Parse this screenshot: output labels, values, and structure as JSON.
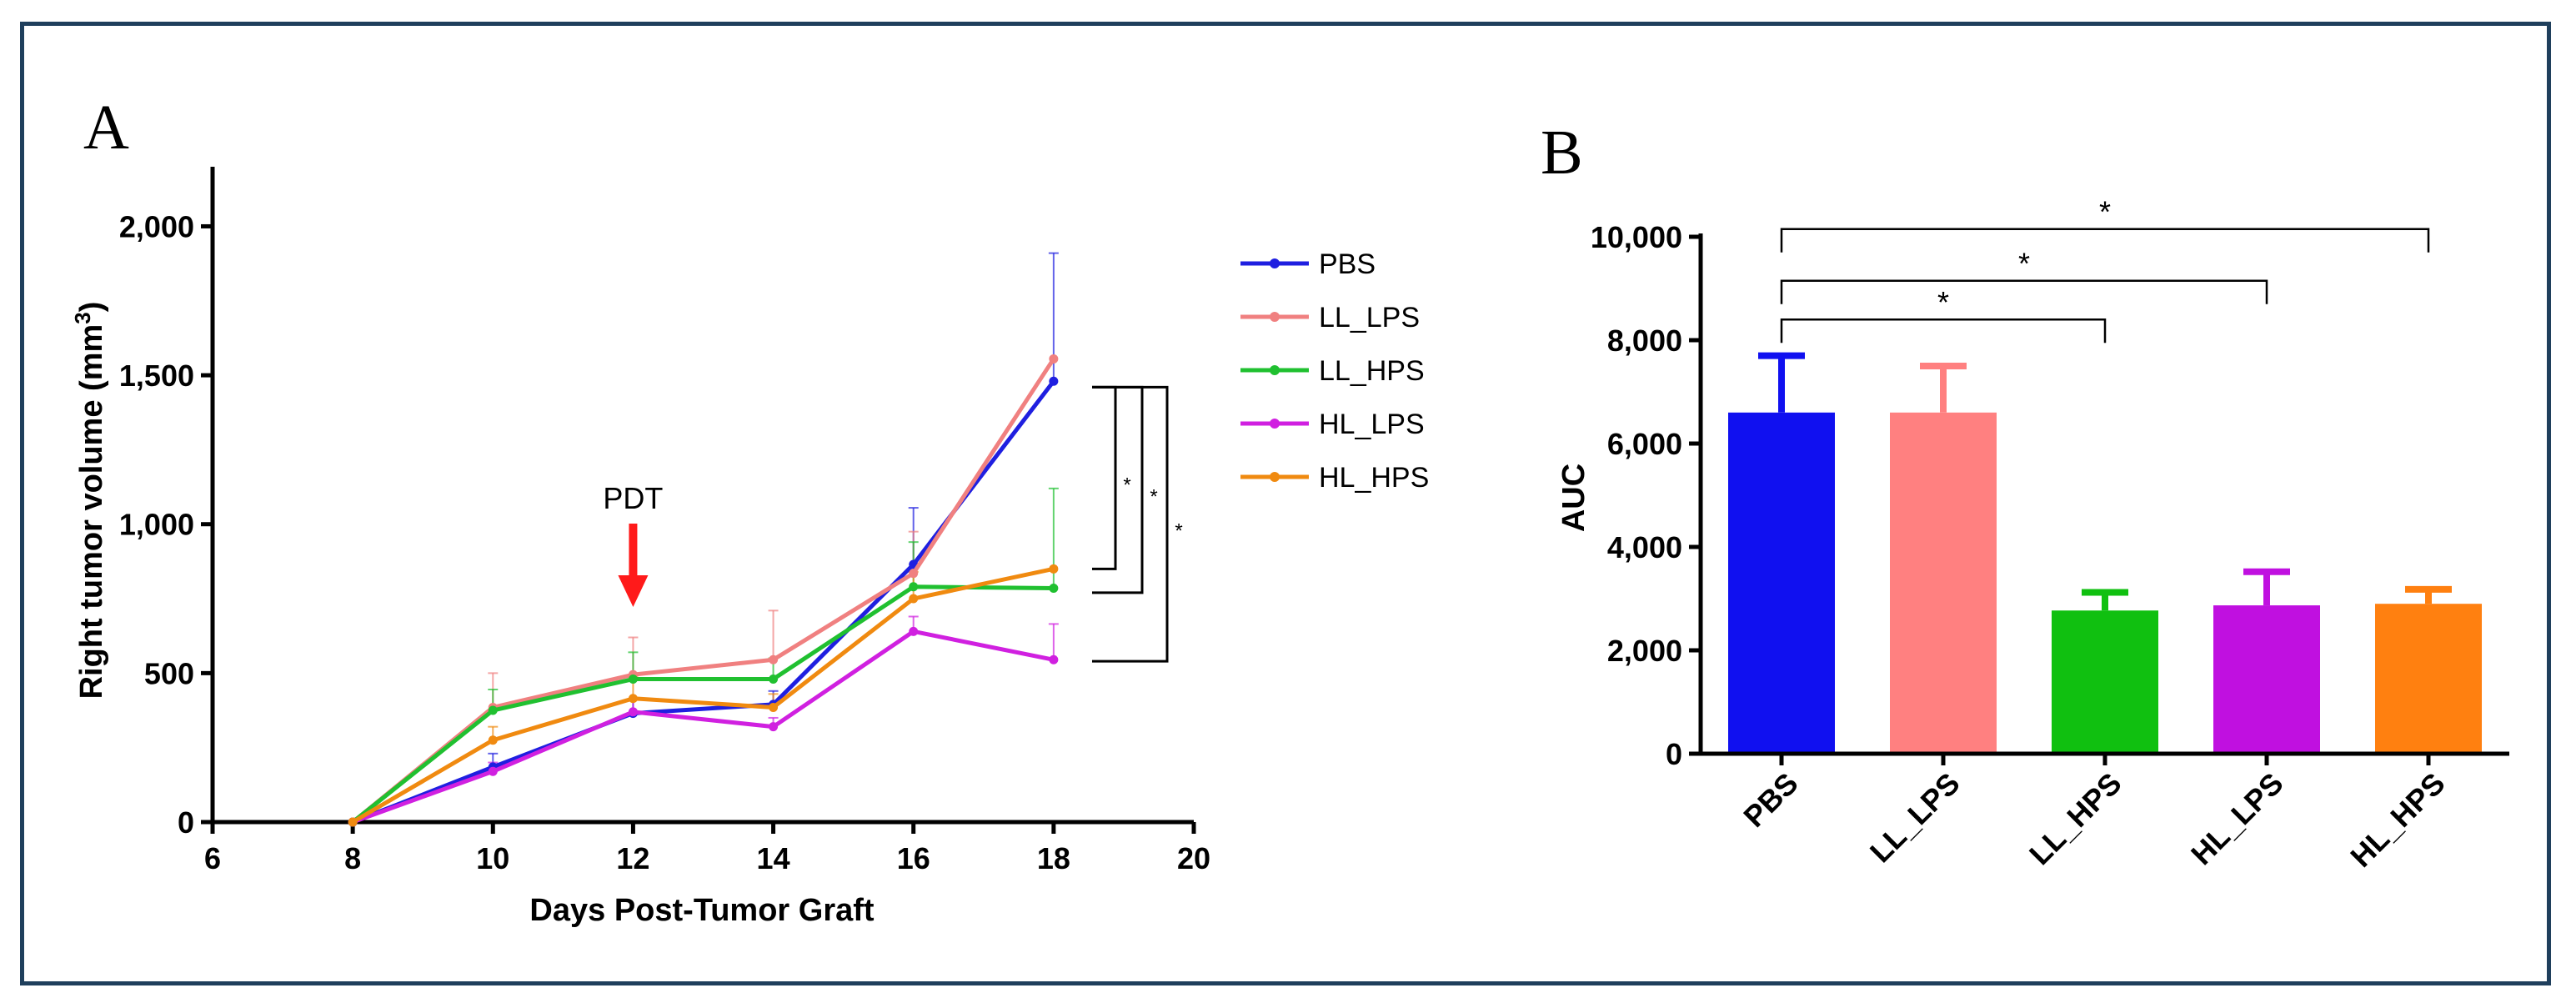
{
  "chart_data": [
    {
      "panel": "A",
      "type": "line",
      "xlabel": "Days Post-Tumor Graft",
      "ylabel_main": "Right tumor volume (mm",
      "ylabel_sup": "3",
      "ylabel_end": ")",
      "xlim": [
        6,
        20
      ],
      "ylim": [
        0,
        2200
      ],
      "xticks": [
        6,
        8,
        10,
        12,
        14,
        16,
        18,
        20
      ],
      "yticks": [
        0,
        500,
        1000,
        1500,
        2000
      ],
      "ytick_labels": [
        "0",
        "500",
        "1,000",
        "1,500",
        "2,000"
      ],
      "x": [
        8,
        10,
        12,
        14,
        16,
        18
      ],
      "series": [
        {
          "name": "PBS",
          "color": "#1f1fe0",
          "values": [
            0,
            185,
            365,
            395,
            865,
            1480
          ],
          "err": [
            0,
            45,
            45,
            45,
            190,
            430
          ]
        },
        {
          "name": "LL_LPS",
          "color": "#f08080",
          "values": [
            0,
            385,
            495,
            545,
            835,
            1555
          ],
          "err": [
            0,
            115,
            125,
            165,
            140,
            0
          ]
        },
        {
          "name": "LL_HPS",
          "color": "#20c030",
          "values": [
            0,
            375,
            480,
            480,
            790,
            785
          ],
          "err": [
            0,
            70,
            90,
            70,
            150,
            335
          ]
        },
        {
          "name": "HL_LPS",
          "color": "#d020e0",
          "values": [
            0,
            170,
            370,
            320,
            640,
            545
          ],
          "err": [
            0,
            30,
            40,
            30,
            50,
            120
          ]
        },
        {
          "name": "HL_HPS",
          "color": "#f08a10",
          "values": [
            0,
            275,
            415,
            385,
            750,
            850
          ],
          "err": [
            0,
            45,
            75,
            45,
            90,
            0
          ]
        }
      ],
      "annotation": {
        "text": "PDT",
        "x": 12,
        "arrow_color": "#ff1a1a"
      },
      "significance": [
        {
          "from_y": 1460,
          "to_y": 850,
          "label": "*"
        },
        {
          "from_y": 1460,
          "to_y": 770,
          "label": "*"
        },
        {
          "from_y": 1460,
          "to_y": 540,
          "label": "*"
        }
      ]
    },
    {
      "panel": "B",
      "type": "bar",
      "ylabel": "AUC",
      "ylim": [
        0,
        10000
      ],
      "yticks": [
        0,
        2000,
        4000,
        6000,
        8000,
        10000
      ],
      "ytick_labels": [
        "0",
        "2,000",
        "4,000",
        "6,000",
        "8,000",
        "10,000"
      ],
      "categories": [
        "PBS",
        "LL_LPS",
        "LL_HPS",
        "HL_LPS",
        "HL_HPS"
      ],
      "values": [
        6600,
        6600,
        2770,
        2870,
        2900
      ],
      "err": [
        1100,
        900,
        350,
        650,
        280
      ],
      "colors": [
        "#1010f0",
        "#ff8080",
        "#10c010",
        "#c010e0",
        "#ff8010"
      ],
      "significance": [
        {
          "from": "PBS",
          "to": "LL_HPS",
          "y": 8400,
          "label": "*"
        },
        {
          "from": "PBS",
          "to": "HL_LPS",
          "y": 9150,
          "label": "*"
        },
        {
          "from": "PBS",
          "to": "HL_HPS",
          "y": 10150,
          "label": "*"
        }
      ]
    }
  ]
}
